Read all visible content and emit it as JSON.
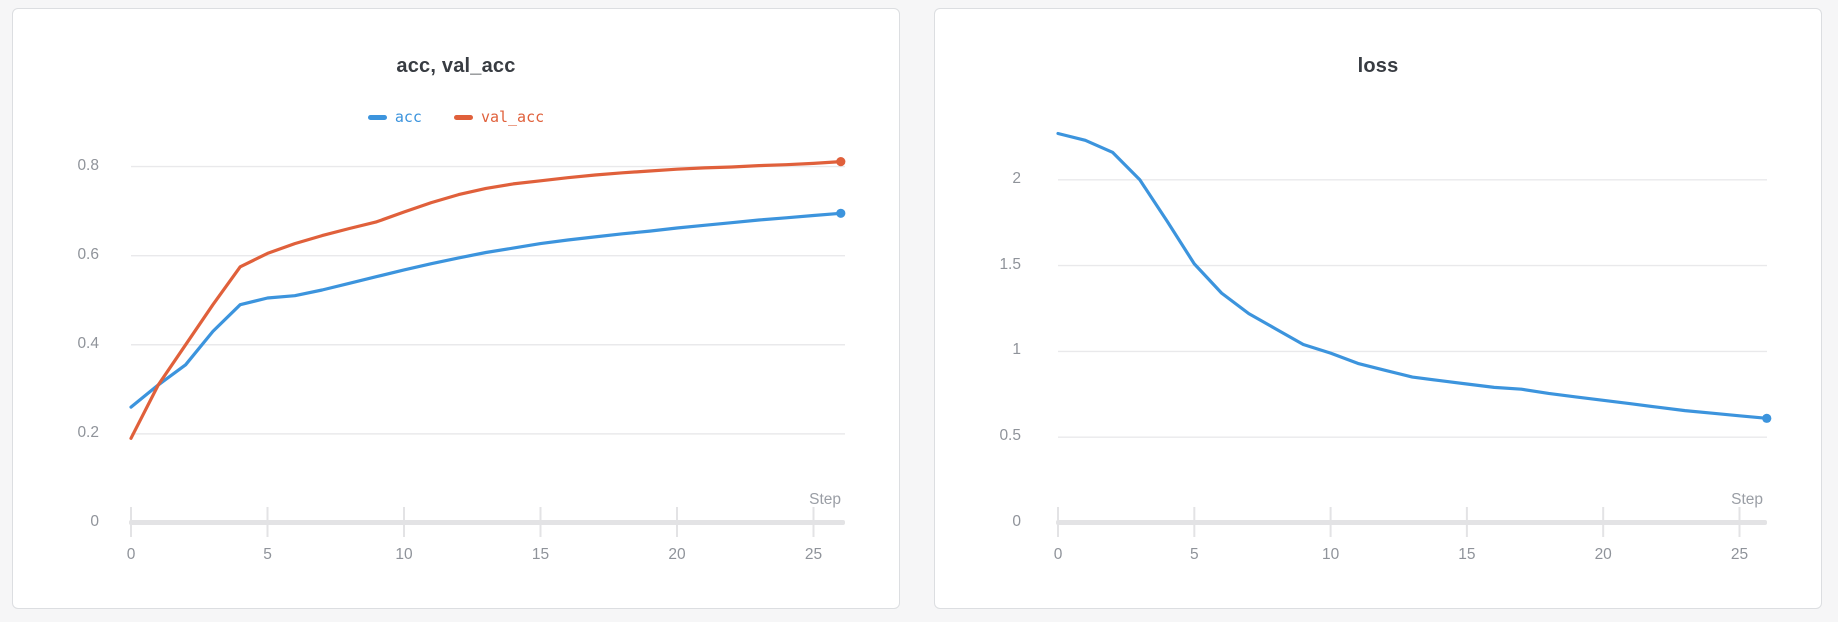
{
  "page": {
    "background": "#f6f6f7"
  },
  "panels": [
    {
      "title": "acc, val_acc"
    },
    {
      "title": "loss"
    }
  ],
  "colors": {
    "series_blue": "#3c94dd",
    "series_orange": "#e0603b",
    "gridline": "#e9e9eb",
    "axis": "#e3e3e5",
    "tick_label": "#8f939a",
    "title_text": "#383c42"
  },
  "chart_data": [
    {
      "type": "line",
      "title": "acc, val_acc",
      "xlabel": "Step",
      "grid": true,
      "legend_position": "top-center",
      "xlim": [
        0,
        26
      ],
      "ylim": [
        0,
        0.9
      ],
      "x": [
        0,
        1,
        2,
        3,
        4,
        5,
        6,
        7,
        8,
        9,
        10,
        11,
        12,
        13,
        14,
        15,
        16,
        17,
        18,
        19,
        20,
        21,
        22,
        23,
        24,
        25,
        26
      ],
      "xticks": [
        {
          "value": 0,
          "label": "0"
        },
        {
          "value": 5,
          "label": "5"
        },
        {
          "value": 10,
          "label": "10"
        },
        {
          "value": 15,
          "label": "15"
        },
        {
          "value": 20,
          "label": "20"
        },
        {
          "value": 25,
          "label": "25"
        }
      ],
      "yticks": [
        {
          "value": 0,
          "label": "0"
        },
        {
          "value": 0.2,
          "label": "0.2"
        },
        {
          "value": 0.4,
          "label": "0.4"
        },
        {
          "value": 0.6,
          "label": "0.6"
        },
        {
          "value": 0.8,
          "label": "0.8"
        }
      ],
      "end_point_marker": true,
      "series": [
        {
          "name": "acc",
          "color": "#3c94dd",
          "values": [
            0.26,
            0.31,
            0.355,
            0.43,
            0.49,
            0.505,
            0.51,
            0.523,
            0.538,
            0.553,
            0.568,
            0.582,
            0.595,
            0.607,
            0.617,
            0.627,
            0.635,
            0.642,
            0.649,
            0.655,
            0.662,
            0.668,
            0.674,
            0.68,
            0.685,
            0.69,
            0.695
          ]
        },
        {
          "name": "val_acc",
          "color": "#e0603b",
          "values": [
            0.19,
            0.31,
            0.4,
            0.49,
            0.575,
            0.605,
            0.627,
            0.645,
            0.661,
            0.676,
            0.698,
            0.719,
            0.737,
            0.751,
            0.761,
            0.768,
            0.775,
            0.781,
            0.786,
            0.79,
            0.794,
            0.797,
            0.799,
            0.802,
            0.804,
            0.807,
            0.811
          ]
        }
      ]
    },
    {
      "type": "line",
      "title": "loss",
      "xlabel": "Step",
      "grid": true,
      "legend_position": "none",
      "xlim": [
        0,
        26
      ],
      "ylim": [
        0,
        2.35
      ],
      "x": [
        0,
        1,
        2,
        3,
        4,
        5,
        6,
        7,
        8,
        9,
        10,
        11,
        12,
        13,
        14,
        15,
        16,
        17,
        18,
        19,
        20,
        21,
        22,
        23,
        24,
        25,
        26
      ],
      "xticks": [
        {
          "value": 0,
          "label": "0"
        },
        {
          "value": 5,
          "label": "5"
        },
        {
          "value": 10,
          "label": "10"
        },
        {
          "value": 15,
          "label": "15"
        },
        {
          "value": 20,
          "label": "20"
        },
        {
          "value": 25,
          "label": "25"
        }
      ],
      "yticks": [
        {
          "value": 0,
          "label": "0"
        },
        {
          "value": 0.5,
          "label": "0.5"
        },
        {
          "value": 1,
          "label": "1"
        },
        {
          "value": 1.5,
          "label": "1.5"
        },
        {
          "value": 2,
          "label": "2"
        }
      ],
      "end_point_marker": true,
      "series": [
        {
          "name": "loss",
          "color": "#3c94dd",
          "values": [
            2.27,
            2.23,
            2.16,
            2.0,
            1.76,
            1.51,
            1.34,
            1.22,
            1.13,
            1.04,
            0.99,
            0.93,
            0.89,
            0.85,
            0.83,
            0.81,
            0.79,
            0.78,
            0.755,
            0.735,
            0.715,
            0.695,
            0.675,
            0.655,
            0.64,
            0.625,
            0.61
          ]
        }
      ]
    }
  ]
}
